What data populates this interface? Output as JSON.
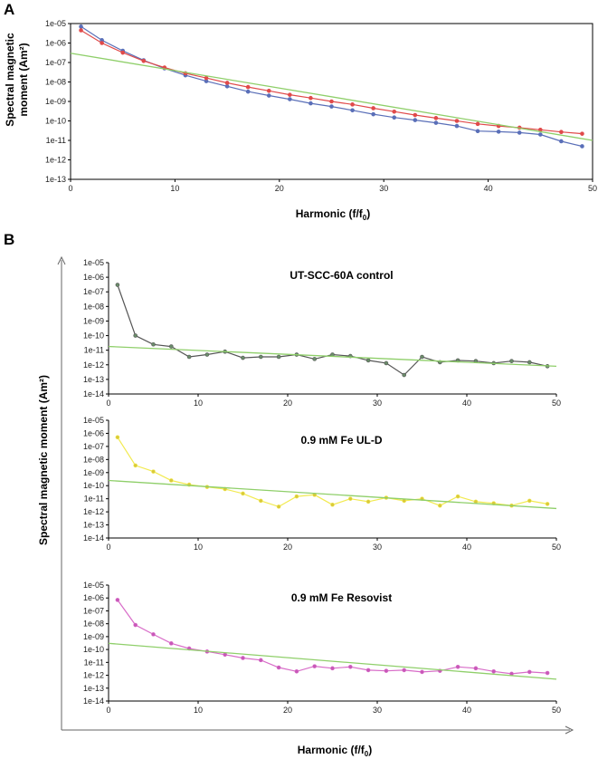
{
  "figure": {
    "panel_a_label": "A",
    "panel_b_label": "B"
  },
  "chart_data": [
    {
      "id": "A",
      "type": "line",
      "title": "",
      "xlabel": "Harmonic (f/f0)",
      "xlabel_main": "Harmonic (f/f",
      "xlabel_sub": "0",
      "xlabel_close": ")",
      "ylabel_line1": "Spectral  magnetic",
      "ylabel_line2": "moment (Am²)",
      "xlim": [
        0,
        50
      ],
      "ylim_log10": [
        -13,
        -5
      ],
      "xticks": [
        0,
        10,
        20,
        30,
        40,
        50
      ],
      "yticks": [
        "1e-05",
        "1e-06",
        "1e-07",
        "1e-08",
        "1e-09",
        "1e-10",
        "1e-11",
        "1e-12",
        "1e-13"
      ],
      "x": [
        1,
        3,
        5,
        7,
        9,
        11,
        13,
        15,
        17,
        19,
        21,
        23,
        25,
        27,
        29,
        31,
        33,
        35,
        37,
        39,
        41,
        43,
        45,
        47,
        49
      ],
      "series": [
        {
          "name": "blue",
          "color": "#5a6fb8",
          "marker": "circle",
          "values": [
            7e-06,
            1.4e-06,
            4e-07,
            1.3e-07,
            5e-08,
            2.2e-08,
            1.1e-08,
            6e-09,
            3.2e-09,
            2e-09,
            1.3e-09,
            8e-10,
            5.5e-10,
            3.5e-10,
            2.2e-10,
            1.5e-10,
            1.1e-10,
            8e-11,
            5.5e-11,
            3e-11,
            2.8e-11,
            2.5e-11,
            2e-11,
            9e-12,
            5e-12
          ]
        },
        {
          "name": "red",
          "color": "#e04a4a",
          "marker": "circle",
          "values": [
            4.5e-06,
            1e-06,
            3.2e-07,
            1.2e-07,
            5.5e-08,
            2.8e-08,
            1.6e-08,
            9e-09,
            5.5e-09,
            3.5e-09,
            2.2e-09,
            1.5e-09,
            1e-09,
            7e-10,
            4.5e-10,
            3e-10,
            2e-10,
            1.4e-10,
            1e-10,
            7e-11,
            5.5e-11,
            4.5e-11,
            3.5e-11,
            2.7e-11,
            2.2e-11
          ]
        },
        {
          "name": "fit",
          "color": "#8fcf6a",
          "marker": "none",
          "fit_x": [
            0,
            50
          ],
          "fit_values": [
            3e-07,
            1e-11
          ]
        }
      ]
    },
    {
      "id": "B1",
      "type": "line",
      "title": "UT-SCC-60A control",
      "xlim": [
        0,
        50
      ],
      "ylim_log10": [
        -14,
        -5
      ],
      "xticks": [
        0,
        10,
        20,
        30,
        40,
        50
      ],
      "yticks": [
        "1e-05",
        "1e-06",
        "1e-07",
        "1e-08",
        "1e-09",
        "1e-10",
        "1e-11",
        "1e-12",
        "1e-13",
        "1e-14"
      ],
      "x": [
        1,
        3,
        5,
        7,
        9,
        11,
        13,
        15,
        17,
        19,
        21,
        23,
        25,
        27,
        29,
        31,
        33,
        35,
        37,
        39,
        41,
        43,
        45,
        47,
        49
      ],
      "series": [
        {
          "name": "data",
          "color": "#555555",
          "marker": "circle",
          "marker_color": "#6a8c6a",
          "values": [
            3e-07,
            1e-10,
            2.5e-11,
            1.8e-11,
            3.5e-12,
            5e-12,
            8e-12,
            3e-12,
            3.5e-12,
            3.5e-12,
            5e-12,
            2.5e-12,
            5e-12,
            4e-12,
            2e-12,
            1.3e-12,
            2e-13,
            3.5e-12,
            1.5e-12,
            2e-12,
            1.8e-12,
            1.3e-12,
            1.8e-12,
            1.5e-12,
            8e-13
          ]
        },
        {
          "name": "fit",
          "color": "#8fcf6a",
          "marker": "none",
          "fit_x": [
            0,
            50
          ],
          "fit_values": [
            1.8e-11,
            8e-13
          ]
        }
      ]
    },
    {
      "id": "B2",
      "type": "line",
      "title": "0.9 mM Fe UL-D",
      "xlim": [
        0,
        50
      ],
      "ylim_log10": [
        -14,
        -5
      ],
      "xticks": [
        0,
        10,
        20,
        30,
        40,
        50
      ],
      "yticks": [
        "1e-05",
        "1e-06",
        "1e-07",
        "1e-08",
        "1e-09",
        "1e-10",
        "1e-11",
        "1e-12",
        "1e-13",
        "1e-14"
      ],
      "x": [
        1,
        3,
        5,
        7,
        9,
        11,
        13,
        15,
        17,
        19,
        21,
        23,
        25,
        27,
        29,
        31,
        33,
        35,
        37,
        39,
        41,
        43,
        45,
        47,
        49
      ],
      "series": [
        {
          "name": "data",
          "color": "#f2ea50",
          "marker": "circle",
          "marker_color": "#d9c93a",
          "values": [
            5e-07,
            3.5e-09,
            1.2e-09,
            2.5e-10,
            1.2e-10,
            8e-11,
            5.5e-11,
            2.5e-11,
            7e-12,
            2.5e-12,
            1.5e-11,
            2e-11,
            3.5e-12,
            1e-11,
            6e-12,
            1.2e-11,
            7e-12,
            1e-11,
            3e-12,
            1.5e-11,
            6e-12,
            4.5e-12,
            3e-12,
            7e-12,
            4e-12
          ]
        },
        {
          "name": "fit",
          "color": "#8fcf6a",
          "marker": "none",
          "fit_x": [
            0,
            50
          ],
          "fit_values": [
            2.5e-10,
            1.8e-12
          ]
        }
      ]
    },
    {
      "id": "B3",
      "type": "line",
      "title": "0.9 mM Fe Resovist",
      "xlabel_main": "Harmonic (f/f",
      "xlabel_sub": "0",
      "xlabel_close": ")",
      "ylabel": "Spectral  magnetic moment (Am²)",
      "xlim": [
        0,
        50
      ],
      "ylim_log10": [
        -14,
        -5
      ],
      "xticks": [
        0,
        10,
        20,
        30,
        40,
        50
      ],
      "yticks": [
        "1e-05",
        "1e-06",
        "1e-07",
        "1e-08",
        "1e-09",
        "1e-10",
        "1e-11",
        "1e-12",
        "1e-13",
        "1e-14"
      ],
      "x": [
        1,
        3,
        5,
        7,
        9,
        11,
        13,
        15,
        17,
        19,
        21,
        23,
        25,
        27,
        29,
        31,
        33,
        35,
        37,
        39,
        41,
        43,
        45,
        47,
        49
      ],
      "series": [
        {
          "name": "data",
          "color": "#d86cc8",
          "marker": "circle",
          "marker_color": "#c858b8",
          "values": [
            7e-07,
            8e-09,
            1.5e-09,
            3e-10,
            1.2e-10,
            7e-11,
            4e-11,
            2.2e-11,
            1.5e-11,
            4e-12,
            2e-12,
            5e-12,
            3.5e-12,
            4.5e-12,
            2.5e-12,
            2.2e-12,
            2.5e-12,
            1.8e-12,
            2.2e-12,
            4.5e-12,
            3.5e-12,
            2e-12,
            1.3e-12,
            1.8e-12,
            1.5e-12
          ]
        },
        {
          "name": "fit",
          "color": "#8fcf6a",
          "marker": "none",
          "fit_x": [
            0,
            50
          ],
          "fit_values": [
            3e-10,
            5e-13
          ]
        }
      ]
    }
  ]
}
